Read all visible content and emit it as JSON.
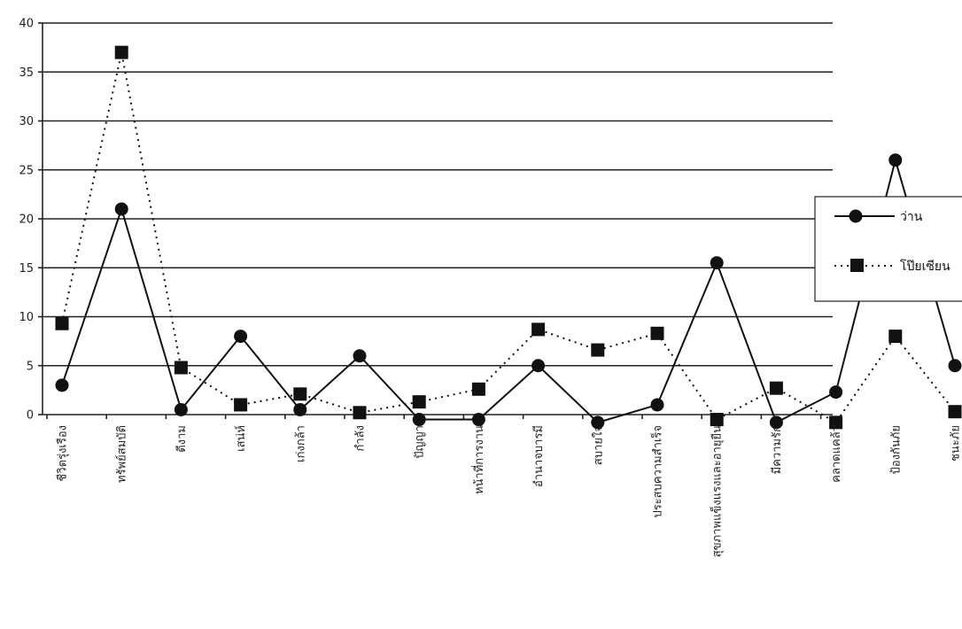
{
  "chart_data": {
    "type": "line",
    "title": "",
    "xlabel": "",
    "ylabel": "",
    "ylim": [
      0,
      40
    ],
    "yticks": [
      0,
      5,
      10,
      15,
      20,
      25,
      30,
      35,
      40
    ],
    "grid": "horizontal",
    "legend_position": "right",
    "categories": [
      "ชีวิตรุ่งเรือง",
      "ทรัพย์สมบัติ",
      "ดีงาม",
      "เสน่ห์",
      "เก่งกล้า",
      "กำลัง",
      "ปัญญา",
      "หน้าที่การงาน",
      "อำนาจบารมี",
      "สบายใจ",
      "ประสบความสำเร็จ",
      "สุขภาพแข็งแรงและอายุยืน",
      "มีความรัก",
      "คลาดแคล้ว",
      "ป้องกันภัย",
      "ชนะภัย"
    ],
    "series": [
      {
        "name": "ว่าน",
        "line_style": "solid",
        "marker": "circle",
        "values": [
          3,
          21,
          0.5,
          8,
          0.5,
          6,
          -0.5,
          -0.5,
          5,
          -0.8,
          1,
          15.5,
          -0.8,
          2.3,
          26,
          5
        ]
      },
      {
        "name": "โป๊ยเซียน",
        "line_style": "dotted",
        "marker": "square",
        "values": [
          9.3,
          37,
          4.8,
          1,
          2.1,
          0.2,
          1.3,
          2.6,
          8.7,
          6.6,
          8.3,
          -0.5,
          2.7,
          -0.8,
          8,
          0.3
        ]
      }
    ]
  },
  "legend": {
    "items": [
      {
        "label": "ว่าน",
        "style": "solid",
        "marker": "circle"
      },
      {
        "label": "โป๊ยเซียน",
        "style": "dotted",
        "marker": "square"
      }
    ]
  }
}
